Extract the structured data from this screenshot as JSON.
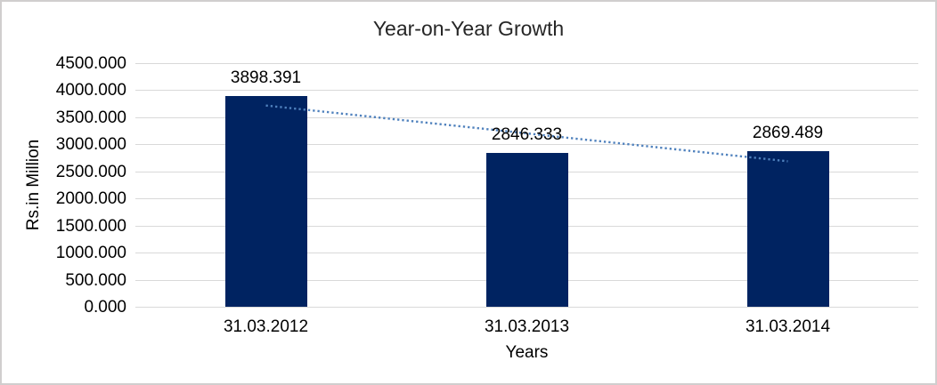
{
  "chart_data": {
    "type": "bar",
    "title": "Year-on-Year Growth",
    "xlabel": "Years",
    "ylabel": "Rs.in Million",
    "categories": [
      "31.03.2012",
      "31.03.2013",
      "31.03.2014"
    ],
    "values": [
      3898.391,
      2846.333,
      2869.489
    ],
    "data_labels": [
      "3898.391",
      "2846.333",
      "2869.489"
    ],
    "ylim": [
      0,
      4500
    ],
    "ytick_step": 500,
    "ytick_labels": [
      "4500.000",
      "4000.000",
      "3500.000",
      "3000.000",
      "2500.000",
      "2000.000",
      "1500.000",
      "1000.000",
      "500.000",
      "0.000"
    ],
    "grid": true,
    "legend": "none",
    "bar_color": "#002361",
    "gridline_color": "#D9D9D9",
    "frame_border_color": "#D0CECE",
    "text_color": "#262626",
    "trendline": {
      "type": "linear",
      "style": "dotted",
      "color": "#4F81BD",
      "start_value": 3719,
      "end_value": 2690
    }
  }
}
